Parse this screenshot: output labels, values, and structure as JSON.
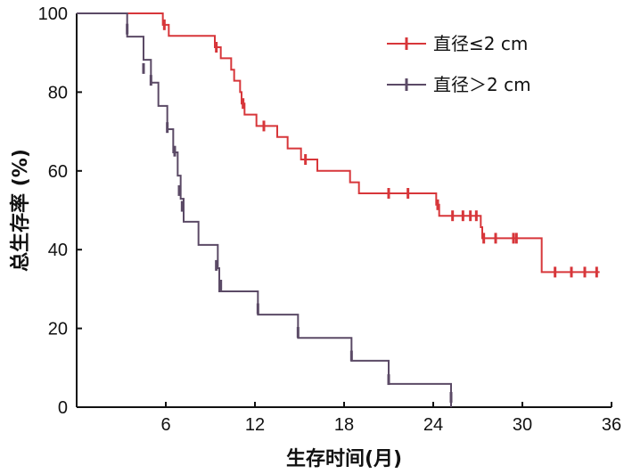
{
  "chart_data": {
    "type": "line",
    "xlabel": "生存时间(月)",
    "ylabel": "总生存率 (%)",
    "xlim": [
      0,
      36
    ],
    "ylim": [
      0,
      100
    ],
    "xticks": [
      6,
      12,
      18,
      24,
      30,
      36
    ],
    "yticks": [
      0,
      20,
      40,
      60,
      80,
      100
    ],
    "grid": false,
    "legend_position": "top-right",
    "series": [
      {
        "name": "直径≤2 cm",
        "color": "#d7363a",
        "steps": [
          [
            0,
            100
          ],
          [
            5.8,
            97.1
          ],
          [
            6.2,
            94.3
          ],
          [
            9.3,
            91.4
          ],
          [
            9.7,
            88.6
          ],
          [
            10.4,
            85.7
          ],
          [
            10.6,
            82.9
          ],
          [
            11.0,
            80.0
          ],
          [
            11.1,
            77.1
          ],
          [
            11.3,
            74.3
          ],
          [
            12.1,
            71.4
          ],
          [
            13.5,
            68.6
          ],
          [
            14.2,
            65.7
          ],
          [
            15.1,
            62.9
          ],
          [
            16.2,
            60.0
          ],
          [
            18.4,
            57.1
          ],
          [
            19.0,
            54.3
          ],
          [
            24.2,
            51.4
          ],
          [
            24.4,
            48.6
          ],
          [
            27.2,
            45.7
          ],
          [
            27.3,
            42.9
          ],
          [
            31.3,
            34.3
          ],
          [
            35.2,
            34.3
          ]
        ],
        "censored": [
          [
            5.9,
            97.1
          ],
          [
            9.4,
            91.4
          ],
          [
            11.2,
            77.1
          ],
          [
            12.6,
            71.4
          ],
          [
            15.4,
            62.9
          ],
          [
            21.0,
            54.3
          ],
          [
            22.3,
            54.3
          ],
          [
            24.3,
            51.4
          ],
          [
            25.3,
            48.6
          ],
          [
            26.0,
            48.6
          ],
          [
            26.5,
            48.6
          ],
          [
            26.9,
            48.6
          ],
          [
            27.4,
            42.9
          ],
          [
            28.2,
            42.9
          ],
          [
            29.4,
            42.9
          ],
          [
            29.6,
            42.9
          ],
          [
            32.2,
            34.3
          ],
          [
            33.3,
            34.3
          ],
          [
            34.2,
            34.3
          ],
          [
            35.0,
            34.3
          ]
        ]
      },
      {
        "name": "直径＞2 cm",
        "color": "#5b4a66",
        "steps": [
          [
            0,
            100
          ],
          [
            3.4,
            94.1
          ],
          [
            4.5,
            88.2
          ],
          [
            5.0,
            82.4
          ],
          [
            5.5,
            76.5
          ],
          [
            6.1,
            70.6
          ],
          [
            6.5,
            64.7
          ],
          [
            6.8,
            58.8
          ],
          [
            7.0,
            52.9
          ],
          [
            7.2,
            47.1
          ],
          [
            8.2,
            41.2
          ],
          [
            9.5,
            35.3
          ],
          [
            9.6,
            29.4
          ],
          [
            12.2,
            23.5
          ],
          [
            14.9,
            17.6
          ],
          [
            18.5,
            11.8
          ],
          [
            21.0,
            5.9
          ],
          [
            25.2,
            0
          ]
        ],
        "censored": [
          [
            3.4,
            96.0
          ],
          [
            4.5,
            86.0
          ],
          [
            5.0,
            83.0
          ],
          [
            6.1,
            71.0
          ],
          [
            6.6,
            65.0
          ],
          [
            6.9,
            55.0
          ],
          [
            7.1,
            51.0
          ],
          [
            9.4,
            36.0
          ],
          [
            9.7,
            31.0
          ],
          [
            12.2,
            25.0
          ],
          [
            14.9,
            19.0
          ],
          [
            18.5,
            13.0
          ],
          [
            21.0,
            7.0
          ],
          [
            25.2,
            2.5
          ]
        ]
      }
    ]
  }
}
